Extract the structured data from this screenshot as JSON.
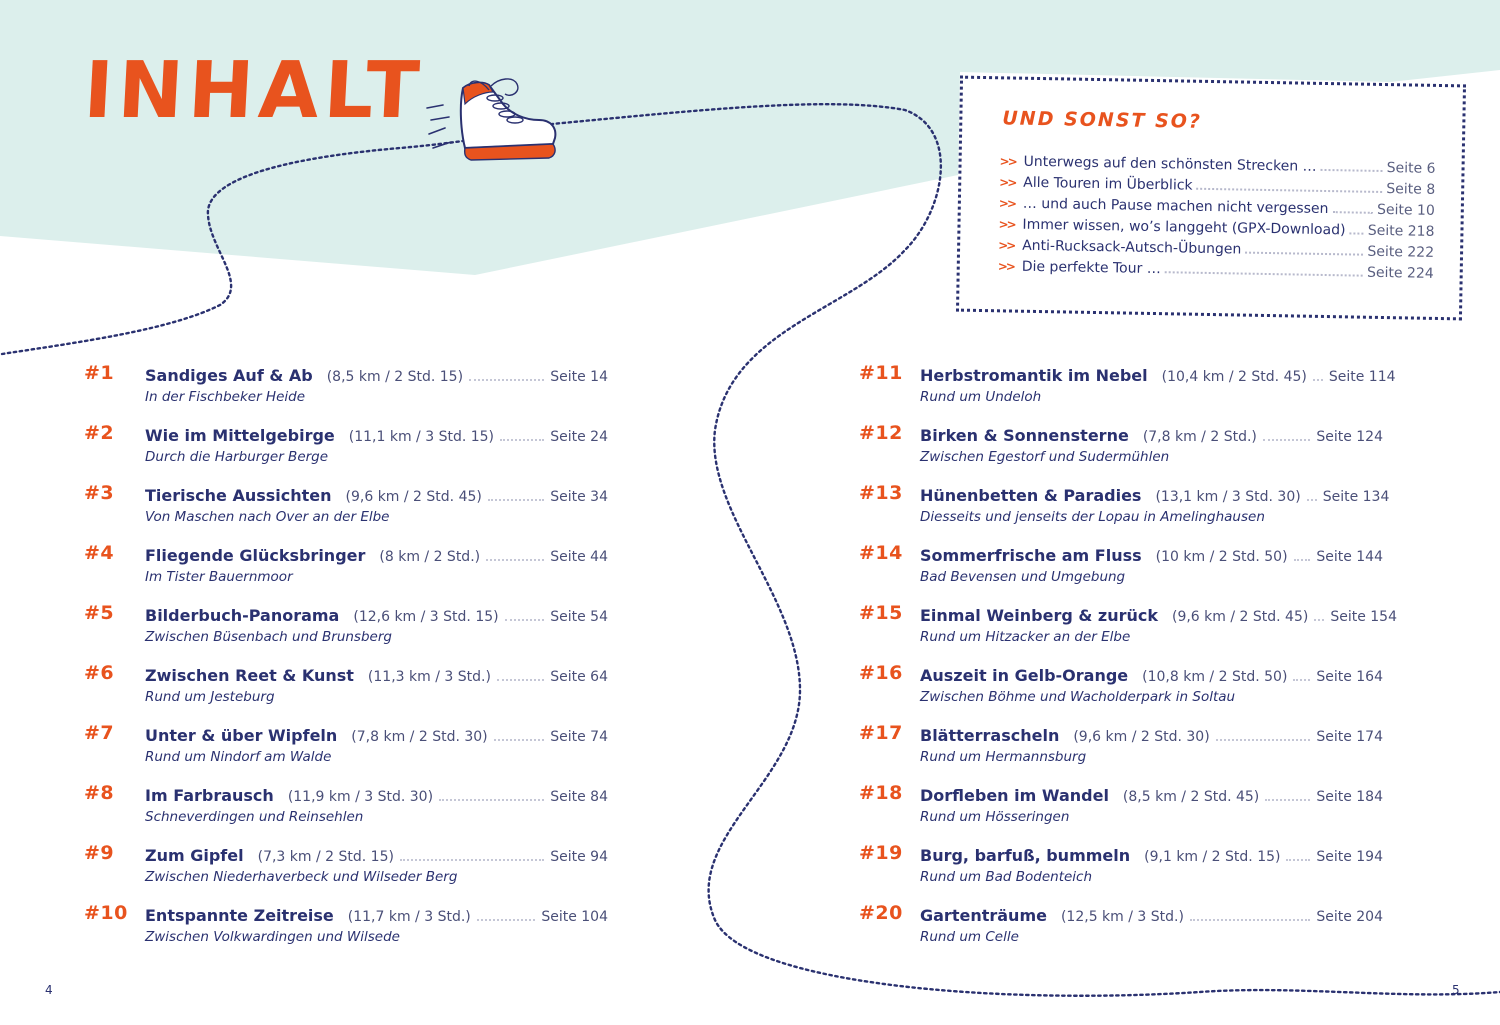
{
  "title": "INHALT",
  "aside": {
    "title": "UND SONST SO?",
    "items": [
      {
        "label": "Unterwegs auf den schönsten Strecken …",
        "page": "Seite 6"
      },
      {
        "label": "Alle Touren im Überblick",
        "page": "Seite 8"
      },
      {
        "label": "… und auch Pause machen nicht vergessen",
        "page": "Seite 10"
      },
      {
        "label": "Immer wissen, wo’s langgeht (GPX-Download)",
        "page": "Seite 218"
      },
      {
        "label": "Anti-Rucksack-Autsch-Übungen",
        "page": "Seite 222"
      },
      {
        "label": "Die perfekte Tour …",
        "page": "Seite 224"
      }
    ]
  },
  "tours_left": [
    {
      "num": "#1",
      "title": "Sandiges Auf & Ab",
      "meta": "(8,5 km / 2 Std. 15)",
      "page": "Seite 14",
      "sub": "In der Fischbeker Heide"
    },
    {
      "num": "#2",
      "title": "Wie im Mittelgebirge",
      "meta": "(11,1 km / 3 Std. 15)",
      "page": "Seite 24",
      "sub": "Durch die Harburger Berge"
    },
    {
      "num": "#3",
      "title": "Tierische Aussichten",
      "meta": "(9,6 km / 2 Std. 45)",
      "page": "Seite 34",
      "sub": "Von Maschen nach Over an der Elbe"
    },
    {
      "num": "#4",
      "title": "Fliegende Glücksbringer",
      "meta": "(8 km / 2 Std.)",
      "page": "Seite 44",
      "sub": "Im Tister Bauernmoor"
    },
    {
      "num": "#5",
      "title": "Bilderbuch-Panorama",
      "meta": "(12,6 km / 3 Std. 15)",
      "page": "Seite 54",
      "sub": "Zwischen Büsenbach und Brunsberg"
    },
    {
      "num": "#6",
      "title": "Zwischen Reet & Kunst",
      "meta": "(11,3 km / 3 Std.)",
      "page": "Seite 64",
      "sub": "Rund um Jesteburg"
    },
    {
      "num": "#7",
      "title": "Unter & über Wipfeln",
      "meta": "(7,8 km / 2 Std. 30)",
      "page": "Seite 74",
      "sub": "Rund um Nindorf am Walde"
    },
    {
      "num": "#8",
      "title": "Im Farbrausch",
      "meta": "(11,9 km / 3 Std. 30)",
      "page": "Seite 84",
      "sub": "Schneverdingen und Reinsehlen"
    },
    {
      "num": "#9",
      "title": "Zum Gipfel",
      "meta": "(7,3 km / 2 Std. 15)",
      "page": "Seite 94",
      "sub": "Zwischen Niederhaverbeck und Wilseder Berg"
    },
    {
      "num": "#10",
      "title": "Entspannte Zeitreise",
      "meta": "(11,7 km / 3 Std.)",
      "page": "Seite 104",
      "sub": "Zwischen Volkwardingen und Wilsede"
    }
  ],
  "tours_right": [
    {
      "num": "#11",
      "title": "Herbstromantik im Nebel",
      "meta": "(10,4 km / 2 Std. 45)",
      "page": "Seite 114",
      "sub": "Rund um Undeloh"
    },
    {
      "num": "#12",
      "title": "Birken & Sonnensterne",
      "meta": "(7,8 km / 2 Std.)",
      "page": "Seite 124",
      "sub": "Zwischen Egestorf und Sudermühlen"
    },
    {
      "num": "#13",
      "title": "Hünenbetten & Paradies",
      "meta": "(13,1 km / 3 Std. 30)",
      "page": "Seite 134",
      "sub": "Diesseits und jenseits der Lopau in Amelinghausen"
    },
    {
      "num": "#14",
      "title": "Sommerfrische am Fluss",
      "meta": "(10 km / 2 Std. 50)",
      "page": "Seite 144",
      "sub": "Bad Bevensen und Umgebung"
    },
    {
      "num": "#15",
      "title": "Einmal Weinberg & zurück",
      "meta": "(9,6 km / 2 Std. 45)",
      "page": "Seite 154",
      "sub": "Rund um Hitzacker an der Elbe"
    },
    {
      "num": "#16",
      "title": "Auszeit in Gelb-Orange",
      "meta": "(10,8 km / 2 Std. 50)",
      "page": "Seite 164",
      "sub": "Zwischen Böhme und Wacholderpark in Soltau"
    },
    {
      "num": "#17",
      "title": "Blätterrascheln",
      "meta": "(9,6 km / 2 Std. 30)",
      "page": "Seite 174",
      "sub": "Rund um Hermannsburg"
    },
    {
      "num": "#18",
      "title": "Dorfleben im Wandel",
      "meta": "(8,5 km / 2 Std. 45)",
      "page": "Seite 184",
      "sub": "Rund um Hösseringen"
    },
    {
      "num": "#19",
      "title": "Burg, barfuß, bummeln",
      "meta": "(9,1 km / 2 Std. 15)",
      "page": "Seite 194",
      "sub": "Rund um Bad Bodenteich"
    },
    {
      "num": "#20",
      "title": "Gartenträume",
      "meta": "(12,5 km / 3 Std.)",
      "page": "Seite 204",
      "sub": "Rund um Celle"
    }
  ],
  "page_left": "4",
  "page_right": "5",
  "colors": {
    "accent": "#e8531e",
    "navy": "#2a3170",
    "mint": "#dcefec"
  }
}
